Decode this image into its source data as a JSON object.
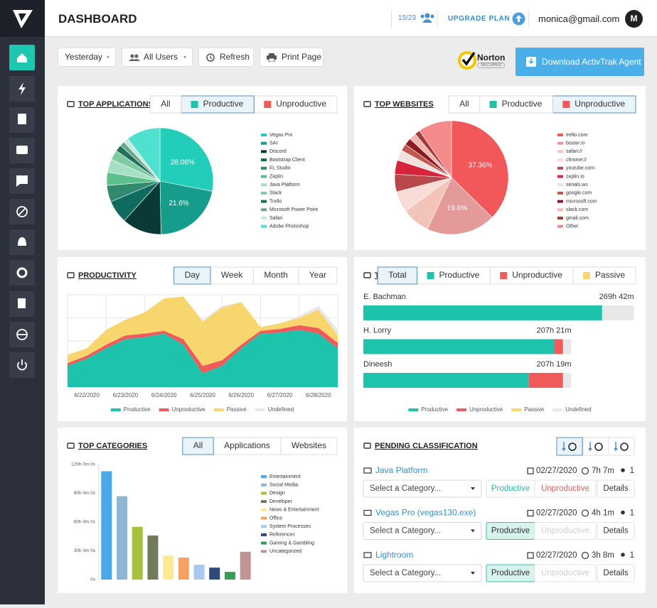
{
  "header": {
    "title": "DASHBOARD",
    "seats": "15/23",
    "upgrade": "UPGRADE PLAN",
    "email": "monica@gmail.com",
    "avatar": "M"
  },
  "toolbar": {
    "date": "Yesterday",
    "users": "All Users",
    "refresh": "Refresh",
    "print": "Print Page",
    "norton": "Norton",
    "norton_sub": "SECURED",
    "download": "Download ActivTrak Agent"
  },
  "chart_data": [
    {
      "type": "pie",
      "title": "TOP APPLICATIONS",
      "tabs": [
        "All",
        "Productive",
        "Unproductive"
      ],
      "tab_colors": [
        null,
        "#1dc3ab",
        "#f05a5a"
      ],
      "active_tab": 1,
      "categories": [
        "Vegas Pro",
        "SAI",
        "Discord",
        "Bootstrap Client",
        "FL Studio",
        "Zeplin",
        "Java Platform",
        "Slack",
        "Trello",
        "Microsoft Power Point",
        "Safari",
        "Adobe Photoshop"
      ],
      "values": [
        28.08,
        21.6,
        12,
        7,
        5,
        4,
        4,
        3,
        2,
        1.5,
        1.5,
        10.32
      ],
      "value_labels": [
        "28.08%",
        "21.6%",
        null,
        null,
        null,
        null,
        null,
        null,
        null,
        null,
        null,
        null
      ],
      "colors": [
        "#22cdb9",
        "#159c8b",
        "#0b3a36",
        "#0f6b60",
        "#2f8a70",
        "#5cc08a",
        "#a6e0c4",
        "#7fcca2",
        "#22705c",
        "#6aa68c",
        "#c3ebdc",
        "#4fe0d0"
      ]
    },
    {
      "type": "pie",
      "title": "TOP WEBSITES",
      "tabs": [
        "All",
        "Productive",
        "Unproductive"
      ],
      "tab_colors": [
        null,
        "#1dc3ab",
        "#f05a5a"
      ],
      "active_tab": 2,
      "categories": [
        "trello.com",
        "boster.io",
        "safari://",
        "chrome://",
        "youtube.com",
        "zeplin.io",
        "serials.ws",
        "google.com",
        "microsoft.com",
        "slack.com",
        "gmail.com",
        "Other"
      ],
      "values": [
        37.36,
        19.6,
        8,
        6,
        5,
        4,
        3,
        2,
        2,
        2,
        1.5,
        9.54
      ],
      "value_labels": [
        "37.36%",
        "19.6%",
        null,
        null,
        null,
        null,
        null,
        null,
        null,
        null,
        null,
        null
      ],
      "colors": [
        "#f2575a",
        "#e59a9a",
        "#f3c4ba",
        "#f9dcd5",
        "#b8484a",
        "#d8243a",
        "#f2e2de",
        "#c0574f",
        "#8c1a22",
        "#f0b7ae",
        "#a83a3a",
        "#f58a8a"
      ]
    },
    {
      "type": "area",
      "title": "PRODUCTIVITY",
      "tabs": [
        "Day",
        "Week",
        "Month",
        "Year"
      ],
      "active_tab": 0,
      "categories": [
        null,
        "6/22/2020",
        null,
        "6/23/2020",
        null,
        "6/24/2020",
        null,
        "6/25/2020",
        null,
        "6/26/2020",
        null,
        "6/27/2020",
        null,
        "6/28/2020",
        null
      ],
      "ylim": [
        0,
        100
      ],
      "grid": true,
      "series": [
        {
          "name": "Productive",
          "color": "#1dc3ab",
          "values": [
            23,
            31,
            42,
            52,
            54,
            58,
            46,
            15,
            23,
            42,
            58,
            59,
            62,
            58,
            42
          ]
        },
        {
          "name": "Unproductive",
          "color": "#f05a5a",
          "values": [
            3,
            3,
            4,
            4,
            4,
            3,
            6,
            8,
            6,
            4,
            3,
            4,
            5,
            6,
            6
          ]
        },
        {
          "name": "Passive",
          "color": "#f7d66e",
          "values": [
            9,
            8,
            16,
            17,
            23,
            35,
            46,
            48,
            57,
            46,
            4,
            6,
            8,
            20,
            8
          ]
        },
        {
          "name": "Undefined",
          "color": "#e8e8e8",
          "values": [
            0,
            0,
            0,
            0,
            0,
            0,
            0,
            2,
            2,
            0,
            0,
            0,
            2,
            4,
            6
          ]
        }
      ]
    },
    {
      "type": "hbar",
      "title": "TOP USERS",
      "tabs": [
        "Total",
        "Productive",
        "Unproductive",
        "Passive"
      ],
      "tab_colors": [
        null,
        "#1dc3ab",
        "#f05a5a",
        "#f7d66e"
      ],
      "active_tab": 0,
      "categories": [
        "E. Bachman",
        "H. Lorry",
        "Dineesh"
      ],
      "total_labels": [
        "269h 42m",
        "207h 21m",
        "207h 19m"
      ],
      "xlim": [
        0,
        270
      ],
      "series": [
        {
          "name": "Productive",
          "color": "#1dc3ab",
          "values": [
            238,
            190,
            165
          ]
        },
        {
          "name": "Unproductive",
          "color": "#f05a5a",
          "values": [
            0,
            9,
            34
          ]
        },
        {
          "name": "Passive",
          "color": "#f7d66e",
          "values": [
            0,
            0,
            0
          ]
        },
        {
          "name": "Undefined",
          "color": "#e8e8e8",
          "values": [
            31.7,
            8.35,
            8.32
          ]
        }
      ]
    },
    {
      "type": "bar",
      "title": "TOP CATEGORIES",
      "tabs": [
        "All",
        "Applications",
        "Websites"
      ],
      "active_tab": 0,
      "categories": [
        "Entertainment",
        "Social Media",
        "Design",
        "Developer",
        "News & Entertainment",
        "Office",
        "System Processes",
        "References",
        "Gaming & Gambling",
        "Uncategorized"
      ],
      "values": [
        113,
        87,
        55,
        46,
        25,
        23,
        15.5,
        12.5,
        8,
        29
      ],
      "colors": [
        "#4aa8e8",
        "#8fb6d2",
        "#a8c040",
        "#717a5a",
        "#fbe994",
        "#f7a060",
        "#a8c8f0",
        "#2e4a78",
        "#3a9a5a",
        "#c09494"
      ],
      "ylim": [
        0,
        120
      ],
      "yticks": [
        {
          "value": 120,
          "label": "120h 0m 0s"
        },
        {
          "value": 90,
          "label": "90h 0m 0s"
        },
        {
          "value": 60,
          "label": "60h 0m 0s"
        },
        {
          "value": 30,
          "label": "30h 0m 0s"
        },
        {
          "value": 0,
          "label": "0s"
        }
      ],
      "grid": false
    }
  ],
  "pending": {
    "title": "PENDING CLASSIFICATION",
    "rows": [
      {
        "name": "Java Platform",
        "date": "02/27/2020",
        "duration": "7h 7m",
        "users": "1",
        "select": "Select a Category...",
        "productive": "Productive",
        "unproductive": "Unproductive",
        "details": "Details",
        "classified": false
      },
      {
        "name": "Vegas Pro (vegas130.exe)",
        "date": "02/27/2020",
        "duration": "4h 1m",
        "users": "1",
        "select": "Select a Category...",
        "productive": "Productive",
        "unproductive": "Unproductive",
        "details": "Details",
        "classified": true
      },
      {
        "name": "Lightroom",
        "date": "02/27/2020",
        "duration": "3h 8m",
        "users": "1",
        "select": "Select a Category...",
        "productive": "Productive",
        "unproductive": "Unproductive",
        "details": "Details",
        "classified": true
      }
    ]
  }
}
